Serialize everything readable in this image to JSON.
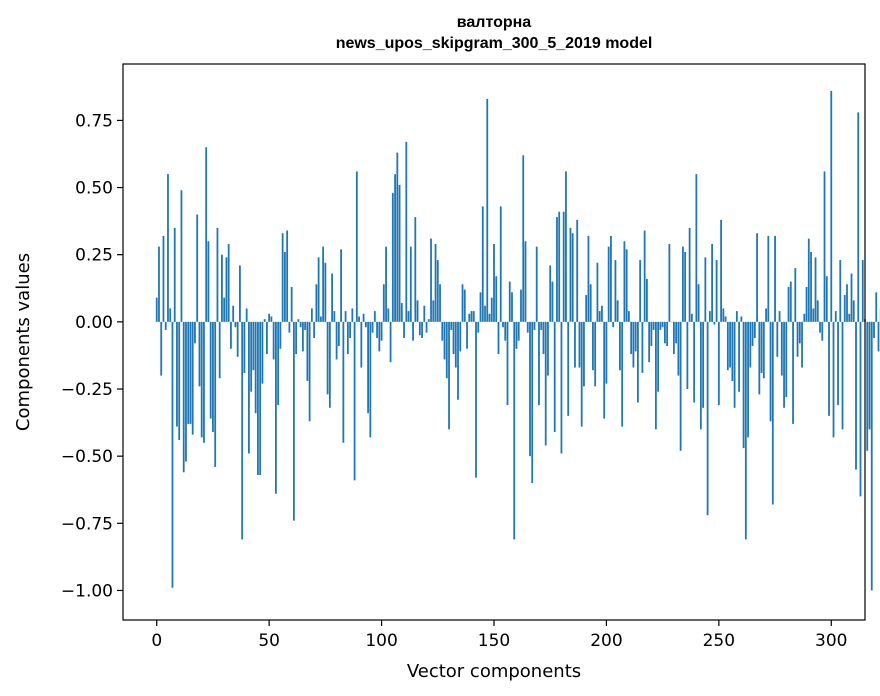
{
  "chart_data": {
    "type": "bar",
    "title": "валторна",
    "subtitle": "news_upos_skipgram_300_5_2019 model",
    "xlabel": "Vector components",
    "ylabel": "Components values",
    "xlim": [
      -15,
      315
    ],
    "ylim": [
      -1.11,
      0.96
    ],
    "xticks": [
      0,
      50,
      100,
      150,
      200,
      250,
      300
    ],
    "xtick_labels": [
      "0",
      "50",
      "100",
      "150",
      "200",
      "250",
      "300"
    ],
    "yticks": [
      -1.0,
      -0.75,
      -0.5,
      -0.25,
      0.0,
      0.25,
      0.5,
      0.75
    ],
    "ytick_labels": [
      "−1.00",
      "−0.75",
      "−0.50",
      "−0.25",
      "0.00",
      "0.25",
      "0.50",
      "0.75"
    ],
    "bar_color": "#1f77b4",
    "values": [
      0.09,
      0.28,
      -0.2,
      0.32,
      -0.03,
      0.55,
      0.05,
      -0.99,
      0.35,
      -0.39,
      -0.44,
      0.49,
      -0.56,
      -0.52,
      -0.38,
      -0.38,
      -0.42,
      -0.08,
      0.4,
      -0.24,
      -0.43,
      -0.45,
      0.65,
      0.3,
      -0.36,
      -0.41,
      -0.54,
      0.35,
      -0.21,
      0.25,
      0.09,
      0.24,
      0.29,
      -0.1,
      0.06,
      -0.02,
      -0.13,
      0.21,
      -0.81,
      -0.19,
      0.05,
      -0.49,
      -0.26,
      -0.18,
      -0.34,
      -0.57,
      -0.57,
      -0.23,
      0.01,
      -0.12,
      0.03,
      0.02,
      -0.14,
      -0.64,
      -0.31,
      -0.1,
      0.33,
      0.26,
      0.34,
      -0.04,
      0.13,
      -0.74,
      -0.12,
      0.01,
      -0.02,
      -0.11,
      -0.03,
      -0.22,
      -0.37,
      0.05,
      -0.06,
      0.14,
      0.24,
      0.02,
      0.28,
      0.22,
      -0.27,
      -0.32,
      0.18,
      0.04,
      -0.14,
      -0.09,
      0.27,
      -0.45,
      0.04,
      -0.12,
      -0.06,
      0.05,
      -0.59,
      0.56,
      0.02,
      -0.17,
      0.03,
      -0.02,
      -0.34,
      -0.43,
      -0.04,
      0.04,
      -0.06,
      -0.11,
      -0.07,
      0.14,
      0.28,
      0.05,
      -0.15,
      0.48,
      0.55,
      0.63,
      0.51,
      0.07,
      -0.06,
      0.67,
      0.04,
      0.28,
      -0.07,
      0.39,
      0.08,
      -0.05,
      -0.06,
      0.06,
      -0.04,
      0.01,
      0.31,
      0.08,
      0.29,
      0.23,
      0.14,
      -0.07,
      -0.14,
      -0.21,
      -0.4,
      -0.03,
      -0.12,
      -0.17,
      -0.29,
      -0.11,
      0.14,
      0.12,
      -0.1,
      0.03,
      0.04,
      0.04,
      -0.58,
      -0.04,
      0.11,
      0.43,
      0.06,
      0.83,
      0.03,
      0.09,
      0.29,
      0.17,
      -0.12,
      0.43,
      -0.02,
      -0.07,
      -0.31,
      0.15,
      0.11,
      -0.81,
      -0.1,
      -0.07,
      0.12,
      0.62,
      0.3,
      -0.04,
      -0.5,
      -0.6,
      -0.03,
      0.28,
      -0.31,
      -0.03,
      -0.12,
      -0.46,
      -0.2,
      0.21,
      0.15,
      -0.41,
      0.39,
      0.41,
      -0.49,
      0.41,
      0.56,
      -0.35,
      0.35,
      0.33,
      -0.17,
      0.38,
      -0.17,
      -0.39,
      -0.24,
      0.1,
      0.32,
      0.14,
      -0.18,
      -0.24,
      0.22,
      0.04,
      0.06,
      -0.36,
      -0.23,
      0.28,
      0.32,
      -0.02,
      0.23,
      0.08,
      -0.18,
      -0.39,
      0.3,
      0.27,
      0.04,
      -0.12,
      -0.17,
      -0.11,
      -0.3,
      0.23,
      -0.19,
      0.34,
      0.16,
      -0.15,
      -0.09,
      -0.03,
      -0.4,
      -0.26,
      -0.03,
      -0.02,
      -0.08,
      -0.09,
      0.29,
      0.0,
      -0.12,
      -0.08,
      -0.2,
      -0.48,
      0.28,
      0.26,
      -0.25,
      0.35,
      0.03,
      -0.3,
      0.55,
      0.14,
      -0.4,
      -0.32,
      0.24,
      -0.72,
      0.04,
      0.29,
      -0.01,
      0.23,
      -0.31,
      0.38,
      0.05,
      0.02,
      -0.18,
      -0.17,
      -0.22,
      -0.32,
      0.04,
      -0.26,
      0.02,
      -0.47,
      -0.81,
      -0.43,
      -0.17,
      -0.09,
      -0.06,
      0.33,
      -0.27,
      -0.19,
      -0.21,
      0.05,
      0.32,
      -0.37,
      -0.68,
      0.32,
      -0.13,
      0.04,
      -0.2,
      -0.32,
      -0.28,
      0.13,
      0.15,
      -0.38,
      0.2,
      -0.13,
      -0.08,
      -0.17,
      0.03,
      0.13,
      0.31,
      0.26,
      0.05,
      0.24,
      0.08,
      -0.04,
      -0.07,
      0.56,
      0.17,
      -0.35,
      0.86,
      -0.43,
      0.04,
      -0.31,
      0.23,
      -0.4,
      0.1,
      0.14,
      0.03,
      0.18,
      0.08,
      -0.55,
      0.78,
      -0.65,
      0.23,
      0.01,
      -0.48,
      -0.4,
      -1.0,
      -0.06,
      0.11,
      -0.11,
      0.05
    ]
  }
}
